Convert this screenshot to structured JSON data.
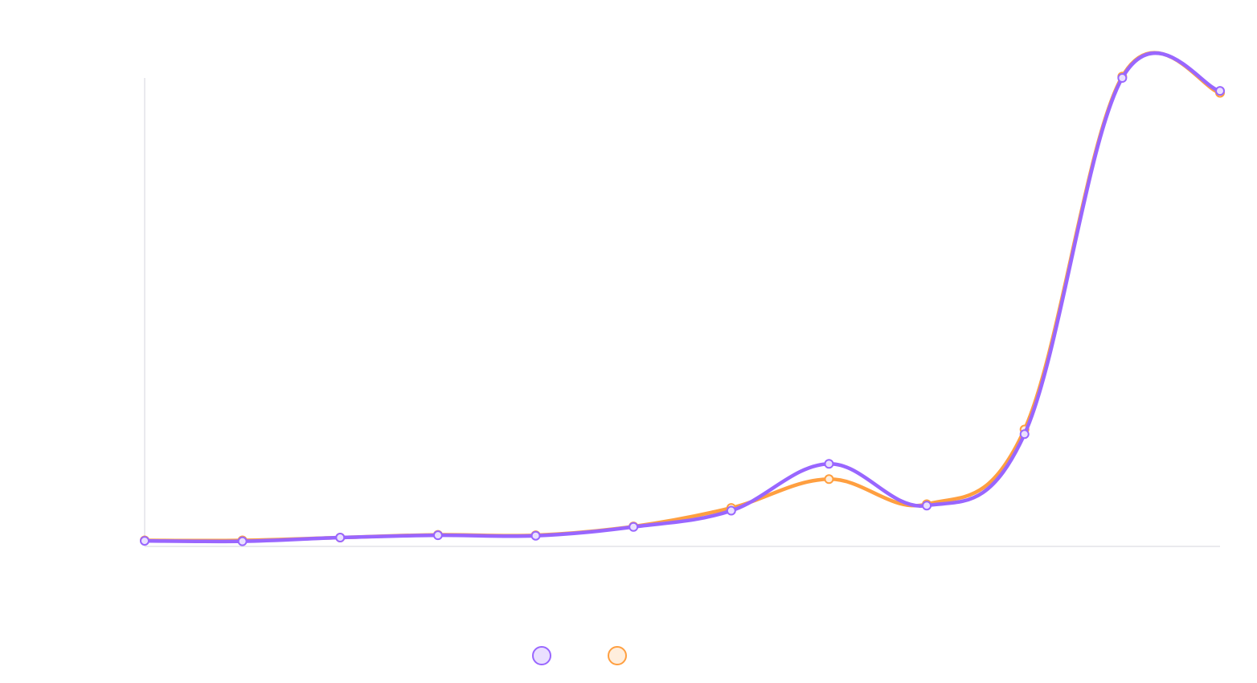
{
  "chart_data": {
    "type": "line",
    "title": "",
    "xlabel": "",
    "ylabel": "",
    "x": [
      1,
      2,
      3,
      4,
      5,
      6,
      7,
      8,
      9,
      10,
      11,
      12
    ],
    "series": [
      {
        "color": "#9966ff",
        "marker_fill": "#eae0ff",
        "values": [
          0.2,
          0.1,
          0.9,
          1.4,
          1.3,
          3.2,
          6.7,
          16.8,
          7.8,
          23.2,
          100.0,
          97.2
        ]
      },
      {
        "color": "#ff9f40",
        "marker_fill": "#ffeedd",
        "values": [
          0.3,
          0.3,
          0.9,
          1.5,
          1.4,
          3.3,
          7.3,
          13.5,
          8.1,
          24.2,
          100.3,
          96.8
        ]
      }
    ],
    "ylim": [
      -1,
      100
    ],
    "grid": false,
    "legend": "bottom-center"
  }
}
